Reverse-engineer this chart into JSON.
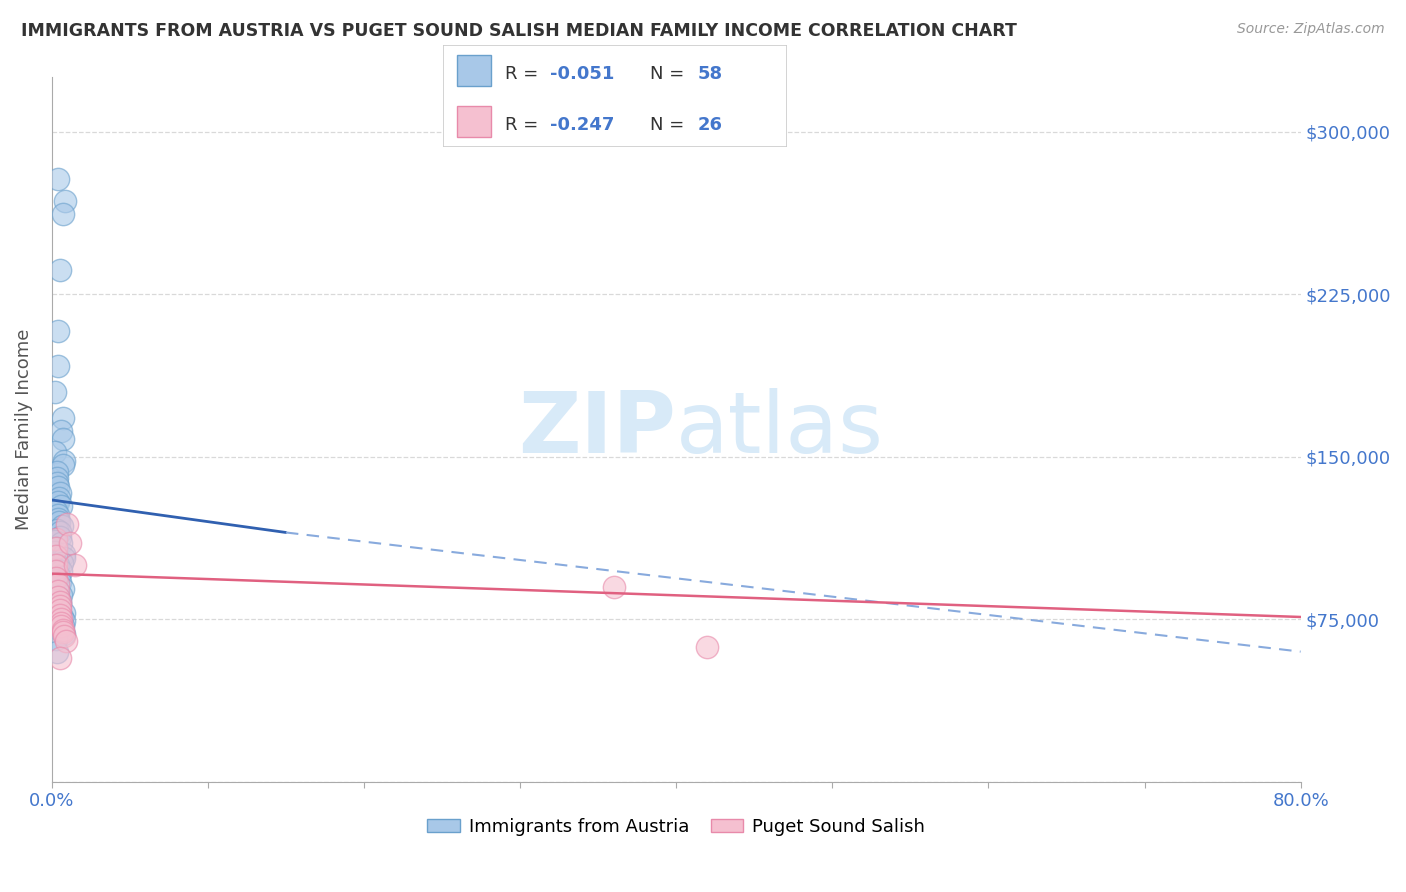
{
  "title": "IMMIGRANTS FROM AUSTRIA VS PUGET SOUND SALISH MEDIAN FAMILY INCOME CORRELATION CHART",
  "source": "Source: ZipAtlas.com",
  "ylabel": "Median Family Income",
  "xlim": [
    0.0,
    0.8
  ],
  "ylim": [
    0,
    325000
  ],
  "yticks": [
    0,
    75000,
    150000,
    225000,
    300000
  ],
  "ytick_labels": [
    "",
    "$75,000",
    "$150,000",
    "$225,000",
    "$300,000"
  ],
  "xtick_positions": [
    0.0,
    0.1,
    0.2,
    0.3,
    0.4,
    0.5,
    0.6,
    0.7,
    0.8
  ],
  "xtick_labels": [
    "0.0%",
    "",
    "",
    "",
    "",
    "",
    "",
    "",
    "80.0%"
  ],
  "legend1_r": "-0.051",
  "legend1_n": "58",
  "legend2_r": "-0.247",
  "legend2_n": "26",
  "series1_color": "#a8c8e8",
  "series1_edge": "#6aa0cc",
  "series2_color": "#f5c0d0",
  "series2_edge": "#e88aaa",
  "trendline1_color": "#3060b0",
  "trendline1_dash_color": "#88aadd",
  "trendline2_color": "#e06080",
  "grid_color": "#d0d0d0",
  "title_color": "#333333",
  "axis_label_color": "#555555",
  "ytick_color": "#4477cc",
  "xtick_color": "#4477cc",
  "legend_text_color": "#4477cc",
  "watermark_color": "#d8eaf8",
  "series1_x": [
    0.003,
    0.004,
    0.004,
    0.003,
    0.004,
    0.004,
    0.003,
    0.003,
    0.003,
    0.004,
    0.003,
    0.003,
    0.003,
    0.003,
    0.003,
    0.003,
    0.003,
    0.003,
    0.003,
    0.003,
    0.003,
    0.003,
    0.003,
    0.003,
    0.003,
    0.003,
    0.003,
    0.003,
    0.003,
    0.003,
    0.003,
    0.003,
    0.003,
    0.003,
    0.003,
    0.003,
    0.003,
    0.003,
    0.003,
    0.003,
    0.003,
    0.003,
    0.003,
    0.003,
    0.003,
    0.003,
    0.003,
    0.003,
    0.003,
    0.003,
    0.003,
    0.003,
    0.003,
    0.003,
    0.003,
    0.003,
    0.003,
    0.003
  ],
  "series1_y": [
    278000,
    268000,
    262000,
    236000,
    208000,
    192000,
    180000,
    168000,
    162000,
    158000,
    152000,
    148000,
    146000,
    143000,
    140000,
    138000,
    136000,
    133000,
    131000,
    129000,
    127000,
    125000,
    123000,
    121000,
    120000,
    118000,
    116000,
    115000,
    113000,
    111000,
    110000,
    108000,
    106000,
    105000,
    103000,
    101000,
    100000,
    98000,
    97000,
    95000,
    93000,
    92000,
    91000,
    89000,
    88000,
    86000,
    85000,
    83000,
    82000,
    80000,
    78000,
    76000,
    74000,
    72000,
    70000,
    68000,
    66000,
    60000
  ],
  "series2_x": [
    0.003,
    0.003,
    0.003,
    0.003,
    0.003,
    0.003,
    0.004,
    0.004,
    0.004,
    0.005,
    0.005,
    0.005,
    0.005,
    0.006,
    0.006,
    0.006,
    0.007,
    0.007,
    0.008,
    0.009,
    0.01,
    0.012,
    0.015,
    0.36,
    0.42,
    0.005
  ],
  "series2_y": [
    112000,
    108000,
    104000,
    100000,
    97000,
    94000,
    91000,
    88000,
    85000,
    83000,
    81000,
    79000,
    77000,
    75000,
    73000,
    72000,
    70000,
    69000,
    67000,
    65000,
    119000,
    110000,
    100000,
    90000,
    62000,
    57000
  ],
  "trendline1_x0": 0.0,
  "trendline1_x1": 0.15,
  "trendline1_y0": 130000,
  "trendline1_y1": 115000,
  "trendline1dash_x0": 0.15,
  "trendline1dash_x1": 0.8,
  "trendline1dash_y0": 115000,
  "trendline1dash_y1": 60000,
  "trendline2_x0": 0.0,
  "trendline2_x1": 0.8,
  "trendline2_y0": 96000,
  "trendline2_y1": 76000
}
